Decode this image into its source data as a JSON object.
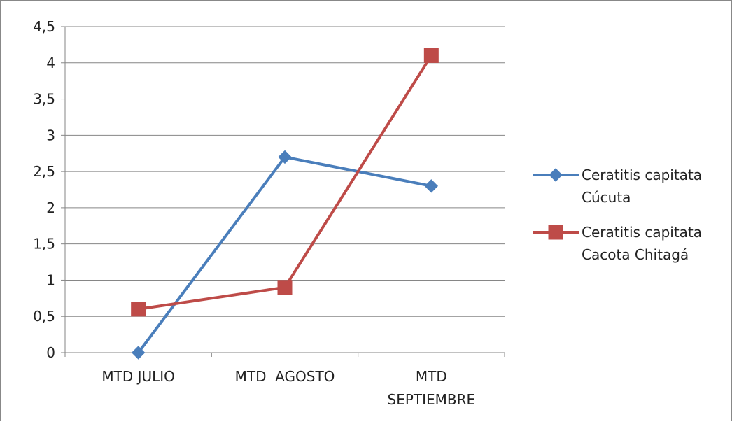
{
  "chart_data": {
    "type": "line",
    "categories": [
      [
        "MTD JULIO"
      ],
      [
        "MTD  AGOSTO"
      ],
      [
        "MTD",
        "SEPTIEMBRE"
      ]
    ],
    "ylim": [
      0,
      4.5
    ],
    "yticks": [
      "0",
      "0,5",
      "1",
      "1,5",
      "2",
      "2,5",
      "3",
      "3,5",
      "4",
      "4,5"
    ],
    "grid": true,
    "legend_position": "right",
    "series": [
      {
        "name": [
          "Ceratitis capitata",
          "Cúcuta"
        ],
        "values": [
          0,
          2.7,
          2.3
        ],
        "color": "#4a7ebb",
        "marker": "diamond"
      },
      {
        "name": [
          "Ceratitis capitata",
          "Cacota Chitagá"
        ],
        "values": [
          0.6,
          0.9,
          4.1
        ],
        "color": "#be4b48",
        "marker": "square"
      }
    ]
  }
}
